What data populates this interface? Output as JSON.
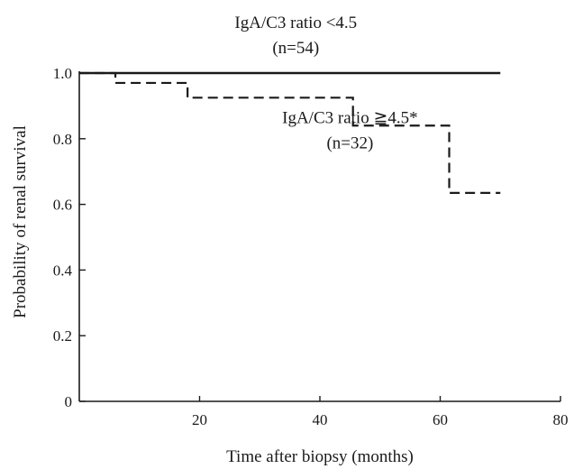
{
  "chart_data": {
    "type": "line",
    "title": "",
    "xlabel": "Time after biopsy (months)",
    "ylabel": "Probability of renal survival",
    "xlim": [
      0,
      80
    ],
    "ylim": [
      0,
      1.0
    ],
    "xticks": [
      20,
      40,
      60,
      80
    ],
    "xtick_labels": [
      "20",
      "40",
      "60",
      "80"
    ],
    "yticks": [
      0,
      0.2,
      0.4,
      0.6,
      0.8,
      1.0
    ],
    "ytick_labels": [
      "0",
      "0.2",
      "0.4",
      "0.6",
      "0.8",
      "1.0"
    ],
    "grid": false,
    "legend": "none",
    "series": [
      {
        "name": "IgA/C3 ratio <4.5",
        "style": "solid",
        "color": "#1a1a1a",
        "x": [
          0,
          70
        ],
        "y": [
          1.0,
          1.0
        ]
      },
      {
        "name": "IgA/C3 ratio ≧4.5*",
        "style": "dashed",
        "color": "#1a1a1a",
        "x": [
          0,
          6,
          18,
          45.5,
          61.5,
          70
        ],
        "y": [
          1.0,
          0.97,
          0.925,
          0.84,
          0.635,
          0.635
        ]
      }
    ],
    "annotations": [
      {
        "id": "group-low",
        "lines": [
          "IgA/C3 ratio <4.5",
          "(n=54)"
        ],
        "x": 36,
        "y": 1.06,
        "anchor": "middle"
      },
      {
        "id": "group-high",
        "lines": [
          "IgA/C3 ratio ≧4.5*",
          "(n=32)"
        ],
        "x": 45,
        "y": 0.77,
        "anchor": "middle"
      }
    ]
  }
}
